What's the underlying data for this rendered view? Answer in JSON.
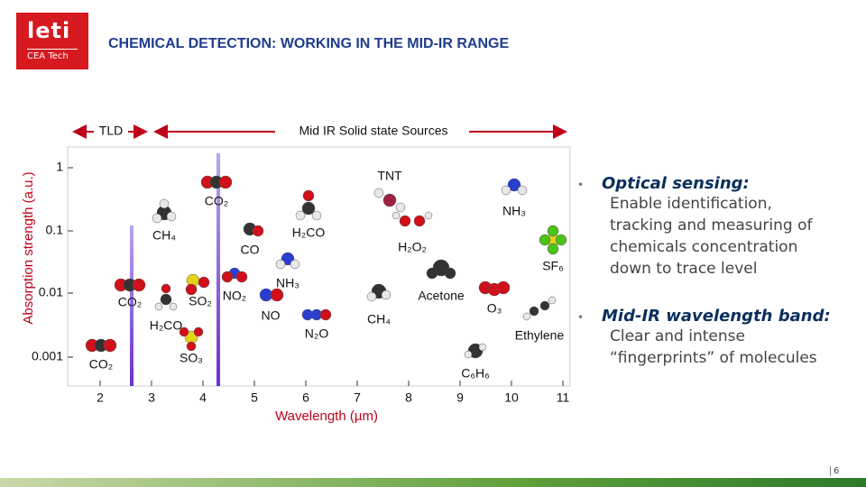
{
  "header": {
    "logo": {
      "name": "leti",
      "subname": "CEA Tech"
    },
    "title": "CHEMICAL DETECTION: WORKING IN THE MID-IR RANGE"
  },
  "figure": {
    "ranges": {
      "tld": "TLD",
      "mid_ir": "Mid IR Solid state Sources"
    },
    "y_axis": {
      "label": "Absorption strength (a.u.)",
      "ticks": [
        "1",
        "0.1",
        "0.01",
        "0.001"
      ]
    },
    "x_axis": {
      "label": "Wavelength (µm)",
      "ticks": [
        "2",
        "3",
        "4",
        "5",
        "6",
        "7",
        "8",
        "9",
        "10",
        "11"
      ]
    },
    "molecules": [
      "CO₂",
      "CH₄",
      "CO",
      "H₂CO",
      "TNT",
      "NH₃",
      "H₂O₂",
      "SF₆",
      "CO₂",
      "SO₂",
      "NO₂",
      "NH₃",
      "NO",
      "Acetone",
      "O₃",
      "CH₄",
      "H₂CO",
      "N₂O",
      "Ethylene",
      "CO₂",
      "SO₃",
      "C₆H₆"
    ]
  },
  "bullets": [
    {
      "heading": "Optical sensing:",
      "lines": [
        "Enable identification,",
        "tracking and measuring of",
        "chemicals concentration",
        "down to trace level"
      ]
    },
    {
      "heading": "Mid-IR wavelength band:",
      "lines": [
        "Clear and intense",
        "“fingerprints” of molecules"
      ]
    }
  ],
  "footer": {
    "page": "6"
  }
}
